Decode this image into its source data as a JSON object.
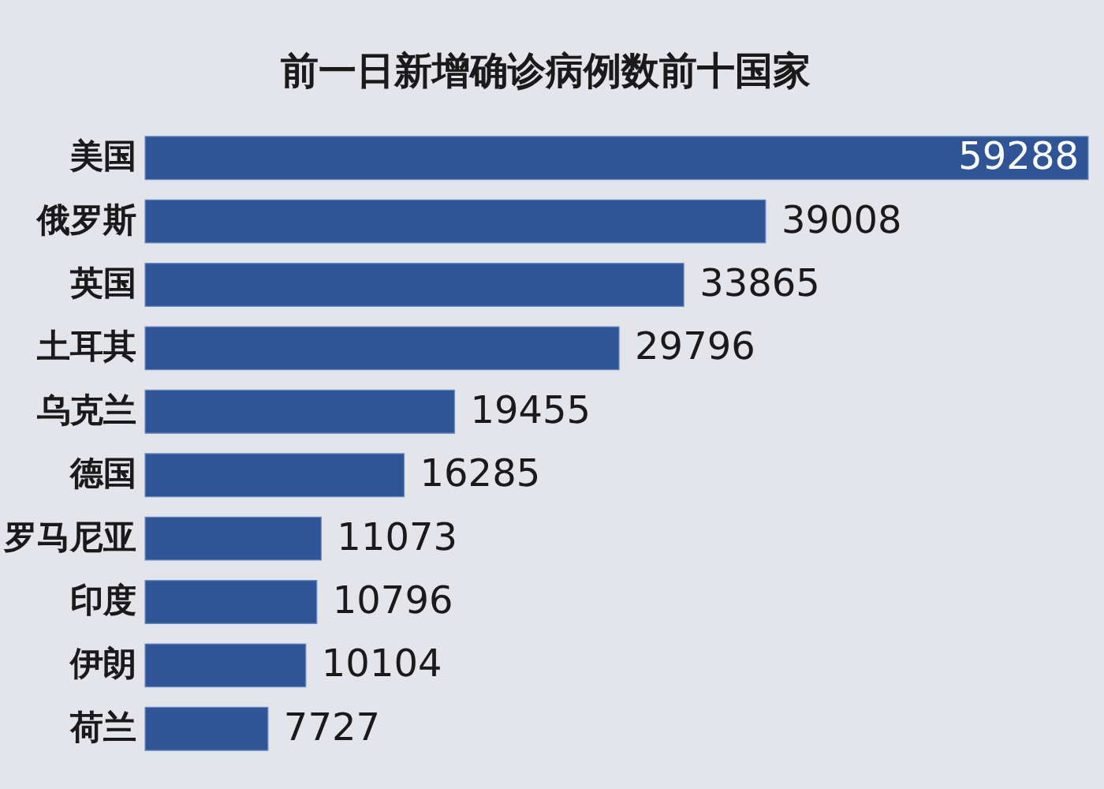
{
  "chart_data": {
    "type": "bar",
    "orientation": "horizontal",
    "title": "前一日新增确诊病例数前十国家",
    "categories": [
      "美国",
      "俄罗斯",
      "英国",
      "土耳其",
      "乌克兰",
      "德国",
      "罗马尼亚",
      "印度",
      "伊朗",
      "荷兰"
    ],
    "values": [
      59288,
      39008,
      33865,
      29796,
      19455,
      16285,
      11073,
      10796,
      10104,
      7727
    ],
    "color": "#2f5597",
    "data_labels": true
  }
}
